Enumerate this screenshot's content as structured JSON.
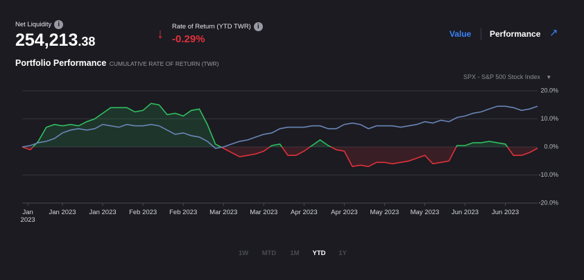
{
  "header": {
    "net_liquidity_label": "Net Liquidity",
    "net_liquidity_whole": "254,213",
    "net_liquidity_cents": ".38",
    "return_label": "Rate of Return (YTD TWR)",
    "return_value": "-0.29%",
    "tabs": [
      "Value",
      "Performance"
    ],
    "title": "Portfolio Performance",
    "subtitle": "CUMULATIVE RATE OF RETURN (TWR)",
    "benchmark": "SPX - S&P 500 Stock Index"
  },
  "chart_data": {
    "type": "line",
    "series": [
      {
        "name": "Portfolio",
        "color": "#2fbf5f",
        "negative_color": "#e0313b",
        "values": [
          0,
          -1,
          2,
          7,
          8,
          7.5,
          8,
          7.5,
          9,
          10,
          12,
          14,
          14,
          14,
          12.5,
          13,
          15.5,
          15,
          11.5,
          12,
          11,
          13,
          13.5,
          8,
          1,
          -0.5,
          -2,
          -3.5,
          -3,
          -2.5,
          -1.5,
          0.5,
          1,
          -3,
          -3,
          -1.5,
          0.5,
          2.5,
          0.5,
          -1,
          -1.5,
          -7,
          -6.5,
          -7,
          -5.5,
          -5.5,
          -6,
          -5.5,
          -5,
          -4,
          -3,
          -6,
          -5.5,
          -5,
          0.5,
          0.5,
          1.5,
          1.5,
          2,
          1.5,
          1,
          -3,
          -3,
          -2,
          -0.5
        ]
      },
      {
        "name": "SPX",
        "color": "#6a86b8",
        "values": [
          0,
          0.5,
          1.5,
          2,
          3,
          5,
          6,
          6.5,
          6,
          6.5,
          8,
          7.5,
          7,
          8,
          7.5,
          7.5,
          8,
          7.5,
          6,
          4.5,
          5,
          4,
          3.5,
          2,
          -0.5,
          0,
          1,
          2,
          2.5,
          3.5,
          4.5,
          5,
          6.5,
          7,
          7,
          7,
          7.5,
          7.5,
          6.5,
          6.5,
          8,
          8.5,
          8,
          6.5,
          7.5,
          7.5,
          7.5,
          7,
          7.5,
          8,
          9,
          8.5,
          9.5,
          9,
          10.5,
          11,
          12,
          12.5,
          13.5,
          14.5,
          14.5,
          14,
          13,
          13.5,
          14.5
        ]
      }
    ],
    "xlim": [
      0,
      64
    ],
    "xticks": [
      {
        "value": 0.7,
        "label": "Jan 2023"
      },
      {
        "value": 5,
        "label": "Jan 2023"
      },
      {
        "value": 10,
        "label": "Jan 2023"
      },
      {
        "value": 15,
        "label": "Feb 2023"
      },
      {
        "value": 20,
        "label": "Feb 2023"
      },
      {
        "value": 25,
        "label": "Mar 2023"
      },
      {
        "value": 30,
        "label": "Mar 2023"
      },
      {
        "value": 35,
        "label": "Apr 2023"
      },
      {
        "value": 40,
        "label": "Apr 2023"
      },
      {
        "value": 45,
        "label": "May 2023"
      },
      {
        "value": 50,
        "label": "May 2023"
      },
      {
        "value": 55,
        "label": "Jun 2023"
      },
      {
        "value": 60,
        "label": "Jun 2023"
      }
    ],
    "ylim": [
      -20,
      20
    ],
    "yticks": [
      {
        "value": 20,
        "label": "20.0%"
      },
      {
        "value": 10,
        "label": "10.0%"
      },
      {
        "value": 0,
        "label": "0.0%"
      },
      {
        "value": -10,
        "label": "-10.0%"
      },
      {
        "value": -20,
        "label": "-20.0%"
      }
    ],
    "grid": true
  },
  "ranges": {
    "items": [
      "1W",
      "MTD",
      "1M",
      "YTD",
      "1Y"
    ],
    "active": "YTD"
  }
}
